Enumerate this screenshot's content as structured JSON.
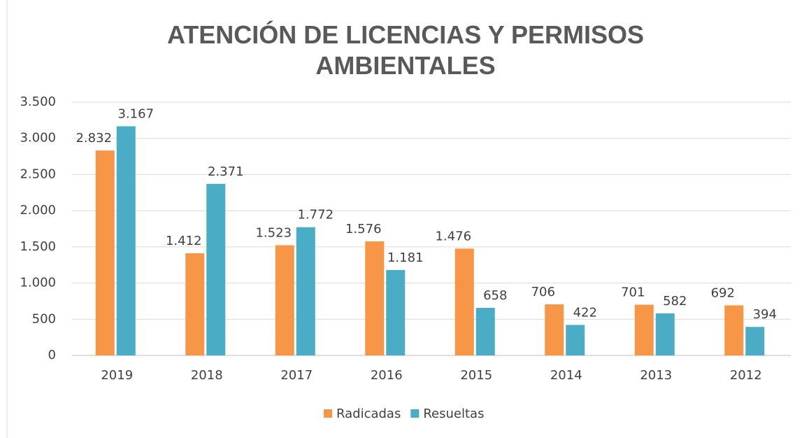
{
  "chart_data": {
    "type": "bar",
    "title": "ATENCIÓN DE LICENCIAS Y PERMISOS AMBIENTALES",
    "categories": [
      "2019",
      "2018",
      "2017",
      "2016",
      "2015",
      "2014",
      "2013",
      "2012"
    ],
    "series": [
      {
        "name": "Radicadas",
        "color": "#f79646",
        "values": [
          2832,
          1412,
          1523,
          1576,
          1476,
          706,
          701,
          692
        ],
        "value_labels": [
          "2.832",
          "1.412",
          "1.523",
          "1.576",
          "1.476",
          "706",
          "701",
          "692"
        ]
      },
      {
        "name": "Resueltas",
        "color": "#4bacc6",
        "values": [
          3167,
          2371,
          1772,
          1181,
          658,
          422,
          582,
          394
        ],
        "value_labels": [
          "3.167",
          "2.371",
          "1.772",
          "1.181",
          "658",
          "422",
          "582",
          "394"
        ]
      }
    ],
    "ylim": [
      0,
      3500
    ],
    "yticks": [
      0,
      500,
      {
        "value": 1000,
        "label": "1.000"
      },
      {
        "value": 1500,
        "label": "1.500"
      },
      {
        "value": 2000,
        "label": "2.000"
      },
      {
        "value": 2500,
        "label": "2.500"
      },
      {
        "value": 3000,
        "label": "3.000"
      },
      {
        "value": 3500,
        "label": "3.500"
      }
    ],
    "grid": true,
    "legend": "bottom"
  }
}
